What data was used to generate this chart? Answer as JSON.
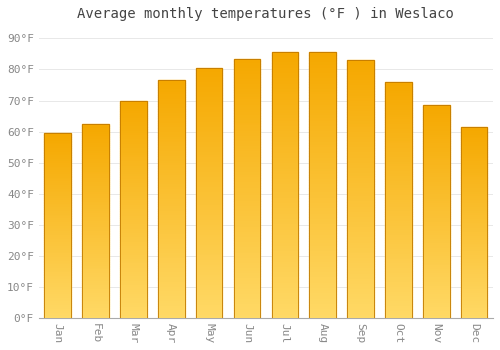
{
  "title": "Average monthly temperatures (°F ) in Weslaco",
  "months": [
    "Jan",
    "Feb",
    "Mar",
    "Apr",
    "May",
    "Jun",
    "Jul",
    "Aug",
    "Sep",
    "Oct",
    "Nov",
    "Dec"
  ],
  "values": [
    59.5,
    62.5,
    70.0,
    76.5,
    80.5,
    83.5,
    85.5,
    85.5,
    83.0,
    76.0,
    68.5,
    61.5
  ],
  "bar_color_top": "#F5A800",
  "bar_color_bottom": "#FFD966",
  "bar_edge_color": "#C07800",
  "background_color": "#ffffff",
  "grid_color": "#e8e8e8",
  "yticks": [
    0,
    10,
    20,
    30,
    40,
    50,
    60,
    70,
    80,
    90
  ],
  "ylim": [
    0,
    93
  ],
  "tick_label_color": "#888888",
  "title_color": "#444444",
  "title_fontsize": 10,
  "tick_fontsize": 8,
  "bar_width": 0.7
}
